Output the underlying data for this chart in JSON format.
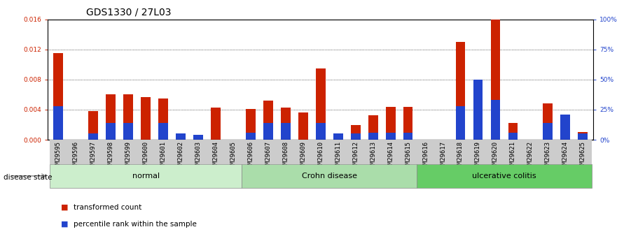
{
  "title": "GDS1330 / 27L03",
  "samples": [
    "GSM29595",
    "GSM29596",
    "GSM29597",
    "GSM29598",
    "GSM29599",
    "GSM29600",
    "GSM29601",
    "GSM29602",
    "GSM29603",
    "GSM29604",
    "GSM29605",
    "GSM29606",
    "GSM29607",
    "GSM29608",
    "GSM29609",
    "GSM29610",
    "GSM29611",
    "GSM29612",
    "GSM29613",
    "GSM29614",
    "GSM29615",
    "GSM29616",
    "GSM29617",
    "GSM29618",
    "GSM29619",
    "GSM29620",
    "GSM29621",
    "GSM29622",
    "GSM29623",
    "GSM29624",
    "GSM29625"
  ],
  "transformed_count": [
    0.01155,
    0.0,
    0.0038,
    0.006,
    0.006,
    0.0057,
    0.0055,
    0.00085,
    0.00055,
    0.0043,
    0.0,
    0.0041,
    0.0052,
    0.0043,
    0.0036,
    0.0095,
    0.00075,
    0.002,
    0.0033,
    0.0044,
    0.0044,
    0.0,
    0.0,
    0.013,
    0.0079,
    0.016,
    0.0022,
    0.0,
    0.0048,
    0.0,
    0.001
  ],
  "percentile_pct": [
    28,
    0,
    5,
    14,
    14,
    0,
    14,
    5,
    4,
    0,
    0,
    6,
    14,
    14,
    0,
    14,
    5,
    5,
    6,
    6,
    6,
    0,
    0,
    28,
    50,
    33,
    6,
    0,
    14,
    21,
    5
  ],
  "groups": [
    {
      "label": "normal",
      "start": 0,
      "end": 10,
      "color": "#cceecc"
    },
    {
      "label": "Crohn disease",
      "start": 11,
      "end": 20,
      "color": "#aaddaa"
    },
    {
      "label": "ulcerative colitis",
      "start": 21,
      "end": 30,
      "color": "#66cc66"
    }
  ],
  "ylim_left": [
    0,
    0.016
  ],
  "ylim_right": [
    0,
    100
  ],
  "yticks_left": [
    0,
    0.004,
    0.008,
    0.012,
    0.016
  ],
  "yticks_right": [
    0,
    25,
    50,
    75,
    100
  ],
  "bar_color_red": "#cc2200",
  "bar_color_blue": "#2244cc",
  "plot_bg": "#ffffff",
  "xticklabel_bg": "#cccccc",
  "title_fontsize": 10,
  "tick_fontsize": 6.5,
  "bar_width": 0.55
}
